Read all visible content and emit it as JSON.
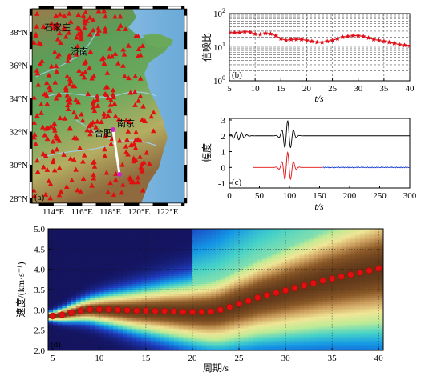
{
  "colors": {
    "station": "#e01010",
    "sea": "#7fb7df",
    "land_low": "#4f9a5a",
    "land_mid": "#b9b56a",
    "land_high": "#9a6a3c",
    "profile": "#ffffff",
    "snr_line": "#e0101a",
    "waveform_raw": "#000000",
    "signal": "#e01010",
    "noise": "#1a3fd0",
    "dispersion_pick": "#e01010"
  },
  "chart_data": [
    {
      "id": "a",
      "type": "map",
      "panel_label": "(a)",
      "xticks": [
        "114°E",
        "116°E",
        "118°E",
        "120°E",
        "122°E"
      ],
      "yticks": [
        "28°N",
        "30°N",
        "32°N",
        "34°N",
        "36°N",
        "38°N"
      ],
      "xlim": [
        112.5,
        123.2
      ],
      "ylim": [
        27.7,
        39.4
      ],
      "place_labels": [
        "石家庄",
        "济南",
        "合肥",
        "南京"
      ],
      "profile": [
        [
          119.2,
          32.4
        ],
        [
          119.75,
          29.6
        ]
      ],
      "profile_endpoint_color": "#d020d0"
    },
    {
      "id": "b",
      "type": "line",
      "panel_label": "(b)",
      "xlabel": "t/s",
      "ylabel": "信噪比",
      "xscale": "linear",
      "yscale": "log",
      "xlim": [
        5,
        40
      ],
      "ylim": [
        1,
        100
      ],
      "xticks": [
        5,
        10,
        15,
        20,
        25,
        30,
        35,
        40
      ],
      "yticks": [
        "10^0",
        "10^1",
        "10^2"
      ],
      "grid": true,
      "x": [
        5,
        6,
        7,
        8,
        9,
        10,
        11,
        12,
        13,
        14,
        15,
        16,
        17,
        18,
        19,
        20,
        21,
        22,
        23,
        24,
        25,
        26,
        27,
        28,
        29,
        30,
        31,
        32,
        33,
        34,
        35,
        36,
        37,
        38,
        39,
        40
      ],
      "values": [
        27,
        27,
        27,
        29,
        28,
        25,
        24,
        26,
        25,
        22,
        18,
        16,
        17,
        17,
        17,
        16,
        15,
        14,
        14,
        15,
        16,
        18,
        20,
        21,
        22,
        22,
        21,
        19,
        17,
        16,
        15,
        14,
        13,
        12,
        11.5,
        11
      ]
    },
    {
      "id": "c",
      "type": "line",
      "panel_label": "(c)",
      "xlabel": "t/s",
      "ylabel": "幅度",
      "xlim": [
        0,
        300
      ],
      "ylim": [
        -1.3,
        3.1
      ],
      "xticks": [
        0,
        50,
        100,
        150,
        200,
        250,
        300
      ],
      "yticks": [
        -1,
        0,
        1,
        2,
        3
      ],
      "series": [
        {
          "offset": 2,
          "signal_window": [
            0,
            300
          ],
          "center": 97,
          "peak": 0.95
        },
        {
          "offset": 0,
          "signal_window": [
            40,
            155
          ],
          "noise_window": [
            155,
            300
          ],
          "center": 97,
          "peak": 0.95
        }
      ]
    },
    {
      "id": "d",
      "type": "heatmap",
      "panel_label": "(d)",
      "xlabel": "周期/s",
      "ylabel": "速度/(km·s⁻¹)",
      "xlim": [
        4.5,
        40.5
      ],
      "ylim": [
        2.0,
        5.0
      ],
      "xticks": [
        5,
        10,
        15,
        20,
        25,
        30,
        35,
        40
      ],
      "yticks": [
        2.0,
        2.5,
        3.0,
        3.5,
        4.0,
        4.5,
        5.0
      ],
      "grid": true,
      "periods": [
        5,
        6,
        7,
        8,
        9,
        10,
        11,
        12,
        13,
        14,
        15,
        16,
        17,
        18,
        19,
        20,
        21,
        22,
        23,
        24,
        25,
        26,
        27,
        28,
        29,
        30,
        31,
        32,
        33,
        34,
        35,
        36,
        37,
        38,
        39,
        40
      ],
      "group_velocity": [
        2.85,
        2.88,
        2.93,
        2.98,
        3.01,
        3.01,
        3.01,
        3.0,
        2.99,
        2.98,
        2.98,
        2.97,
        2.97,
        2.96,
        2.95,
        2.95,
        2.95,
        2.96,
        3.0,
        3.07,
        3.15,
        3.22,
        3.3,
        3.36,
        3.42,
        3.48,
        3.54,
        3.6,
        3.66,
        3.72,
        3.77,
        3.82,
        3.87,
        3.92,
        3.97,
        4.02
      ]
    }
  ]
}
